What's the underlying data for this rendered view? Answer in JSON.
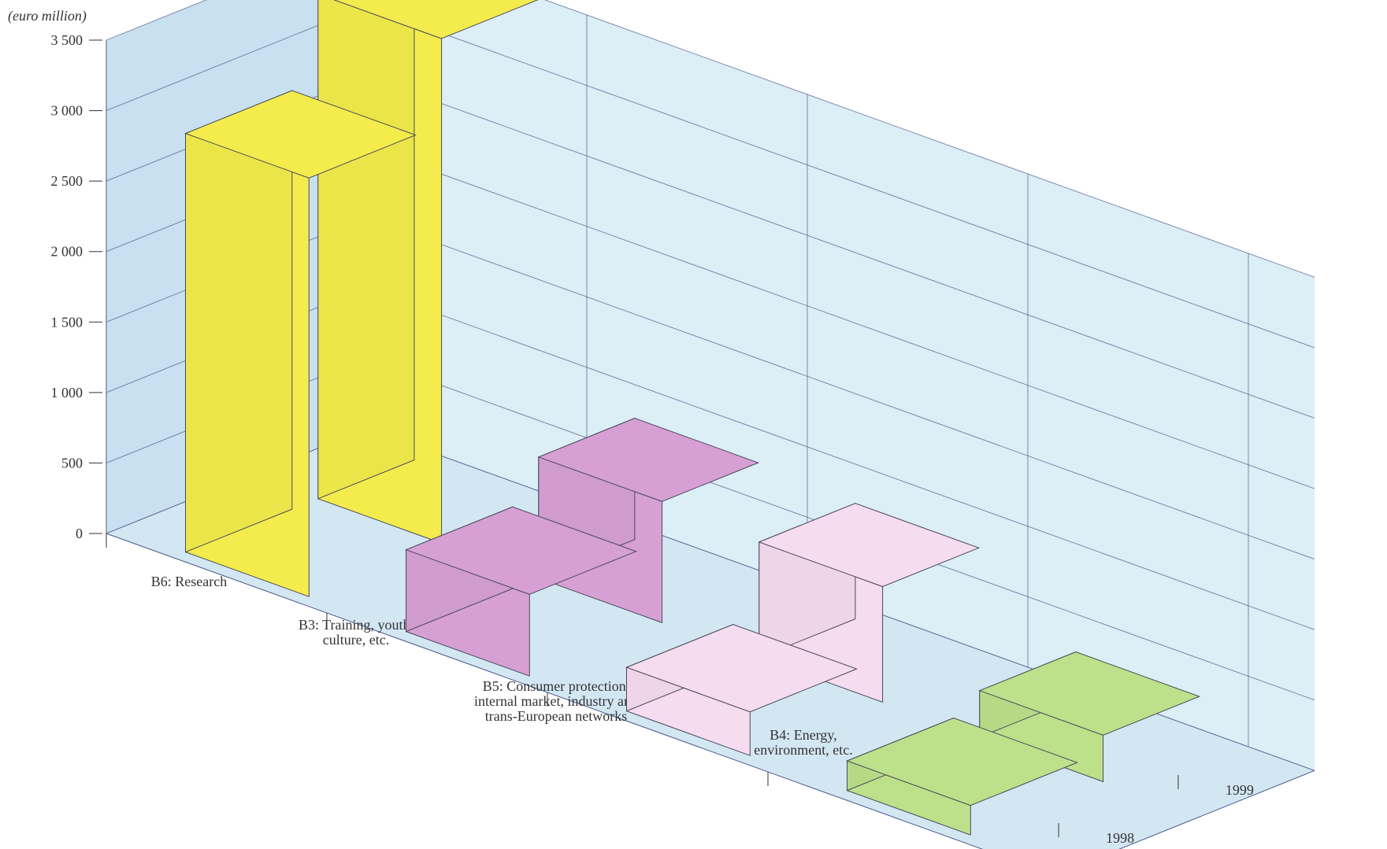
{
  "chart_data": {
    "type": "bar",
    "variant": "3d",
    "title": "",
    "unit_label": "(euro million)",
    "categories": [
      [
        "B6: Research"
      ],
      [
        "B3: Training, youth,",
        "culture, etc."
      ],
      [
        "B5: Consumer protection,",
        "internal market, industry and",
        "trans-European networks"
      ],
      [
        "B4: Energy,",
        "environment, etc."
      ]
    ],
    "series": [
      {
        "name": "1998",
        "values": [
          2970,
          580,
          310,
          210
        ]
      },
      {
        "name": "1999",
        "values": [
          3580,
          860,
          820,
          330
        ]
      }
    ],
    "ylim": [
      0,
      3500
    ],
    "yticks": [
      0,
      500,
      1000,
      1500,
      2000,
      2500,
      3000,
      3500
    ],
    "ytick_labels": [
      "0",
      "500",
      "1 000",
      "1 500",
      "2 000",
      "2 500",
      "3 000",
      "3 500"
    ],
    "grid": true,
    "colors": {
      "categories": [
        "#f3ec4c",
        "#d6a0d4",
        "#f6dcef",
        "#bde08a"
      ],
      "wall": "#dceef6",
      "wall_left": "#c9e0f1",
      "floor": "#d3e7f3",
      "grid": "#4a5a8a"
    }
  }
}
